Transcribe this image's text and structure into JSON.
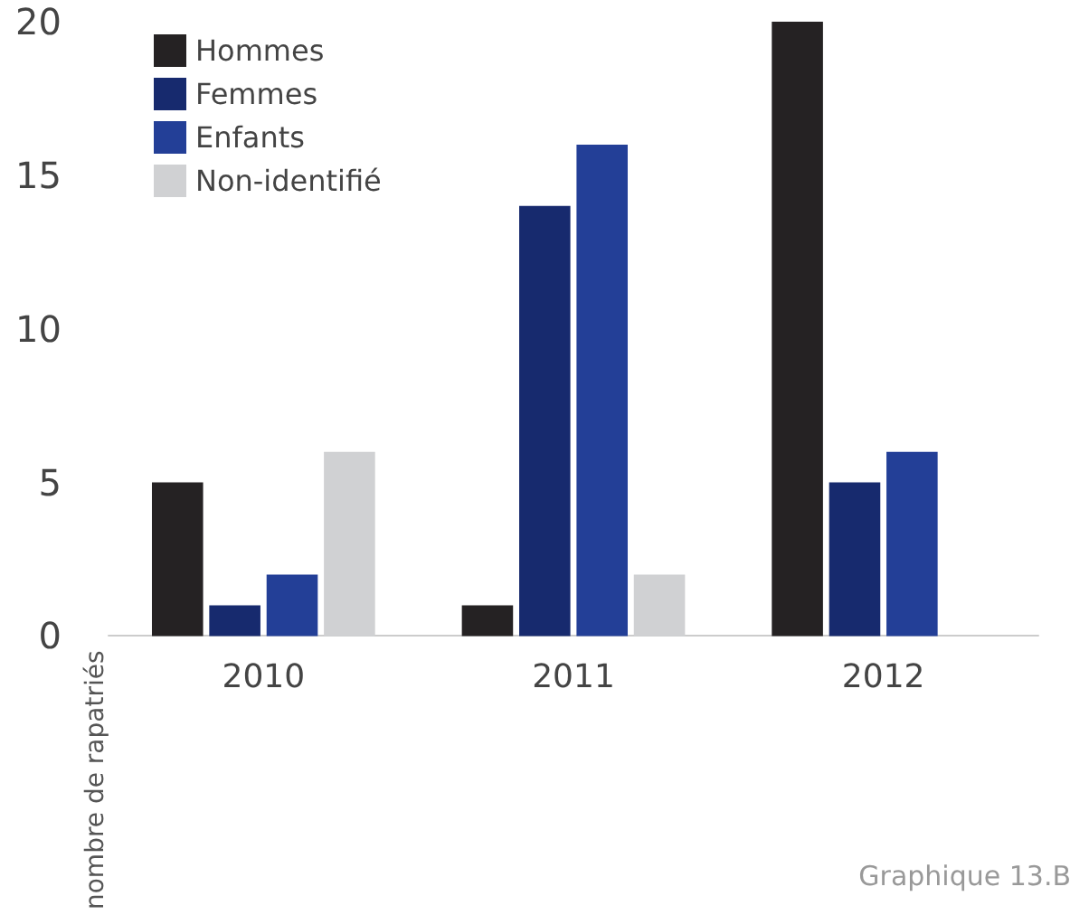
{
  "chart_data": {
    "type": "bar",
    "ylabel": "nombre de rapatriés",
    "categories": [
      "2010",
      "2011",
      "2012"
    ],
    "series": [
      {
        "name": "Hommes",
        "color": "#252223",
        "values": [
          5,
          1,
          20
        ]
      },
      {
        "name": "Femmes",
        "color": "#172a6e",
        "values": [
          1,
          14,
          5
        ]
      },
      {
        "name": "Enfants",
        "color": "#233f97",
        "values": [
          2,
          16,
          6
        ]
      },
      {
        "name": "Non-identifié",
        "color": "#d0d1d3",
        "values": [
          6,
          2,
          0
        ]
      }
    ],
    "ylim": [
      0,
      20
    ],
    "yticks": [
      0,
      5,
      10,
      15,
      20
    ],
    "grid": false,
    "legend": "top left",
    "annotations": [
      "Graphique 13.B"
    ]
  }
}
